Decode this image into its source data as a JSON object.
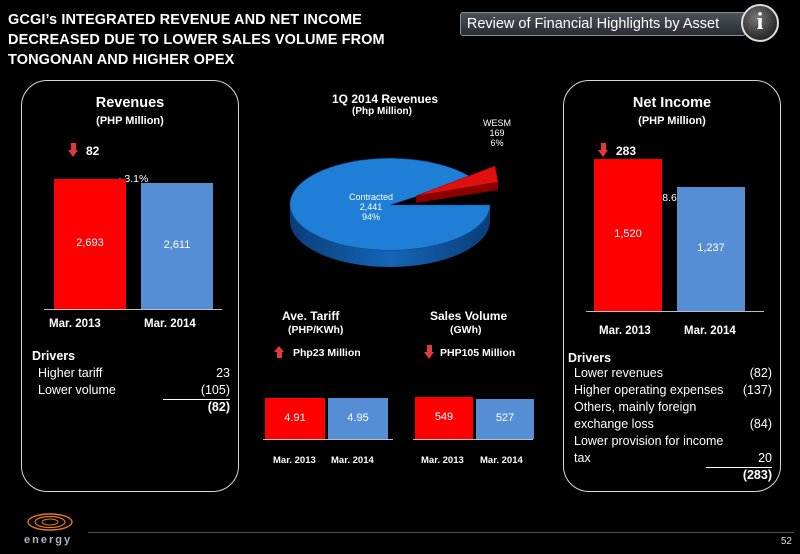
{
  "headline": "GCGI’s  INTEGRATED REVENUE AND NET INCOME DECREASED DUE TO LOWER SALES VOLUME FROM TONGONAN AND HIGHER OPEX",
  "section_banner": "Review of Financial Highlights by Asset",
  "info_letter": "i",
  "revenues": {
    "title": "Revenues",
    "unit": "(PHP Million)",
    "change": "82",
    "pct": "- 3.1%",
    "drivers_title": "Drivers",
    "drivers": [
      {
        "label": "Higher tariff",
        "value": "23"
      },
      {
        "label": "Lower volume",
        "value": "(105)"
      }
    ],
    "total": "(82)"
  },
  "net_income": {
    "title": "Net Income",
    "unit": "(PHP Million)",
    "change": "283",
    "pct": "- 18.6%",
    "drivers_title": "Drivers",
    "drivers": [
      {
        "label": "Lower revenues",
        "value": "(82)"
      },
      {
        "label": "Higher operating expenses",
        "value": "(137)"
      },
      {
        "label": "Others, mainly foreign",
        "value": ""
      },
      {
        "label": "exchange loss",
        "value": "(84)"
      },
      {
        "label": "Lower provision for income",
        "value": ""
      },
      {
        "label": "tax",
        "value": "20"
      }
    ],
    "total": "(283)"
  },
  "pie": {
    "title": "1Q 2014 Revenues",
    "unit": "(Php Million)",
    "contracted": {
      "name": "Contracted",
      "value": "2,441",
      "pct": "94%"
    },
    "wesm": {
      "name": "WESM",
      "value": "169",
      "pct": "6%"
    }
  },
  "tariff": {
    "title": "Ave. Tariff",
    "unit": "(PHP/KWh)",
    "change": "Php23 Million"
  },
  "volume": {
    "title": "Sales Volume",
    "unit": "(GWh)",
    "change": "PHP105 Million"
  },
  "chart_data": [
    {
      "type": "bar",
      "categories": [
        "Mar. 2013",
        "Mar. 2014"
      ],
      "values": [
        2693,
        2611
      ],
      "labels": [
        "2,693",
        "2,611"
      ],
      "colors": [
        "#ff0000",
        "#558ed5"
      ]
    },
    {
      "type": "bar",
      "categories": [
        "Mar. 2013",
        "Mar. 2014"
      ],
      "values": [
        1520,
        1237
      ],
      "labels": [
        "1,520",
        "1,237"
      ],
      "colors": [
        "#ff0000",
        "#558ed5"
      ]
    },
    {
      "type": "bar",
      "categories": [
        "Mar. 2013",
        "Mar. 2014"
      ],
      "values": [
        4.91,
        4.95
      ],
      "labels": [
        "4.91",
        "4.95"
      ],
      "colors": [
        "#ff0000",
        "#558ed5"
      ]
    },
    {
      "type": "bar",
      "categories": [
        "Mar. 2013",
        "Mar. 2014"
      ],
      "values": [
        549,
        527
      ],
      "labels": [
        "549",
        "527"
      ],
      "colors": [
        "#ff0000",
        "#558ed5"
      ]
    },
    {
      "type": "pie",
      "categories": [
        "Contracted",
        "WESM"
      ],
      "values": [
        2441,
        169
      ],
      "percent": [
        94,
        6
      ],
      "colors": [
        "#1f7fd6",
        "#e01010"
      ]
    }
  ],
  "logo_text": "energy",
  "page_number": "52"
}
